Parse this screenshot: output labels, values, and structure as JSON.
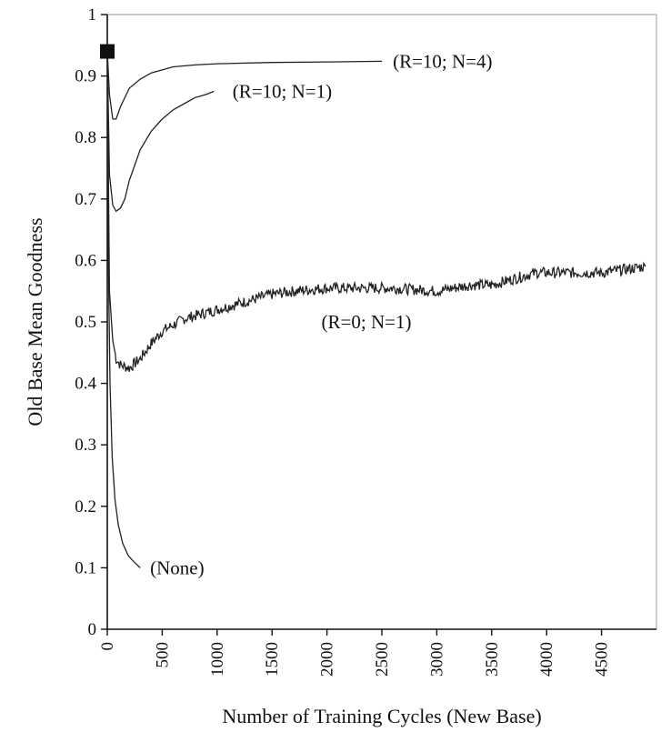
{
  "chart_data": {
    "type": "line",
    "title": "",
    "xlabel": "Number of Training Cycles (New Base)",
    "ylabel": "Old Base Mean Goodness",
    "xlim": [
      0,
      5000
    ],
    "ylim": [
      0,
      1
    ],
    "grid": false,
    "legend": "none",
    "x_ticks": [
      "0",
      "500",
      "1000",
      "1500",
      "2000",
      "2500",
      "3000",
      "3500",
      "4000",
      "4500"
    ],
    "y_ticks": [
      "0",
      "0.1",
      "0.2",
      "0.3",
      "0.4",
      "0.5",
      "0.6",
      "0.7",
      "0.8",
      "0.9",
      "1"
    ],
    "series": [
      {
        "name": "(R=10; N=4)",
        "label_at": [
          2600,
          0.924
        ],
        "x": [
          0,
          20,
          50,
          80,
          120,
          200,
          300,
          400,
          600,
          800,
          1000,
          1500,
          2000,
          2500
        ],
        "y": [
          0.94,
          0.87,
          0.83,
          0.83,
          0.85,
          0.88,
          0.895,
          0.905,
          0.915,
          0.918,
          0.92,
          0.922,
          0.923,
          0.924
        ]
      },
      {
        "name": "(R=10; N=1)",
        "label_at": [
          1140,
          0.875
        ],
        "x": [
          0,
          20,
          50,
          80,
          120,
          160,
          200,
          300,
          400,
          500,
          600,
          700,
          800,
          900,
          970
        ],
        "y": [
          0.94,
          0.74,
          0.69,
          0.68,
          0.685,
          0.7,
          0.73,
          0.78,
          0.81,
          0.83,
          0.845,
          0.855,
          0.865,
          0.87,
          0.875
        ]
      },
      {
        "name": "(R=0; N=1)",
        "label_at": [
          1950,
          0.5
        ],
        "noise": 0.009,
        "x": [
          0,
          20,
          50,
          80,
          120,
          200,
          300,
          400,
          500,
          700,
          900,
          1100,
          1300,
          1500,
          1700,
          2000,
          2300,
          2600,
          3000,
          3300,
          3500,
          3700,
          3900,
          4200,
          4500,
          4900
        ],
        "y": [
          0.94,
          0.55,
          0.47,
          0.44,
          0.43,
          0.425,
          0.44,
          0.465,
          0.485,
          0.505,
          0.515,
          0.525,
          0.535,
          0.545,
          0.55,
          0.555,
          0.555,
          0.555,
          0.55,
          0.56,
          0.56,
          0.57,
          0.58,
          0.58,
          0.58,
          0.59
        ]
      },
      {
        "name": "(None)",
        "label_at": [
          390,
          0.1
        ],
        "x": [
          0,
          10,
          25,
          45,
          70,
          100,
          140,
          190,
          240,
          300
        ],
        "y": [
          0.94,
          0.6,
          0.4,
          0.28,
          0.21,
          0.17,
          0.14,
          0.12,
          0.11,
          0.1
        ]
      }
    ],
    "marker": {
      "x": 0,
      "y": 0.94,
      "shape": "square"
    }
  }
}
